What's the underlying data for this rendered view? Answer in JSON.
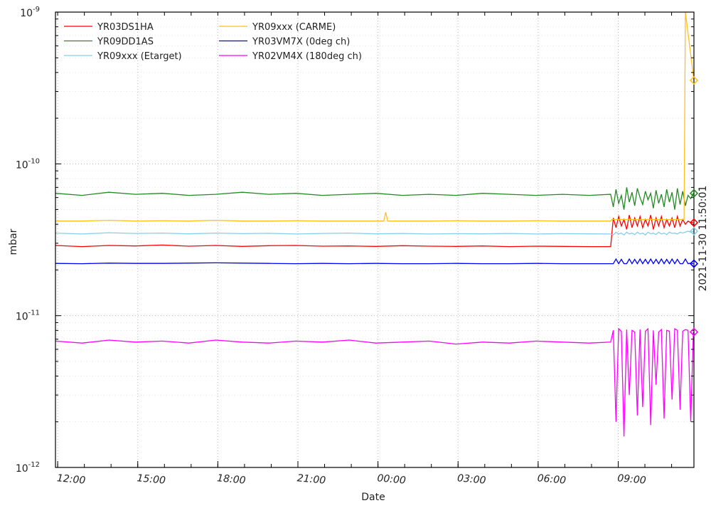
{
  "chart_data": {
    "type": "line",
    "title": "",
    "xlabel": "Date",
    "ylabel": "mbar",
    "yscale": "log",
    "ylim": [
      1e-12,
      1e-09
    ],
    "x_unit": "hours since 2021-11-29 11:55",
    "xlim": [
      0,
      23.92
    ],
    "x_ticks": [
      {
        "t": 0.083,
        "label": "12:00"
      },
      {
        "t": 3.083,
        "label": "15:00"
      },
      {
        "t": 6.083,
        "label": "18:00"
      },
      {
        "t": 9.083,
        "label": "21:00"
      },
      {
        "t": 12.083,
        "label": "00:00"
      },
      {
        "t": 15.083,
        "label": "03:00"
      },
      {
        "t": 18.083,
        "label": "06:00"
      },
      {
        "t": 21.083,
        "label": "09:00"
      }
    ],
    "y_ticks": [
      {
        "value": 1e-09,
        "base": "10",
        "exp": "-9"
      },
      {
        "value": 1e-10,
        "base": "10",
        "exp": "-10"
      },
      {
        "value": 1e-11,
        "base": "10",
        "exp": "-11"
      },
      {
        "value": 1e-12,
        "base": "10",
        "exp": "-12"
      }
    ],
    "grid": true,
    "legend_position": "top-left",
    "cursor_label": "2021-11-30 11:50:01",
    "cursor_color": "#8a63b8",
    "t_shared": [
      0,
      1,
      2,
      3,
      4,
      5,
      6,
      7,
      8,
      9,
      10,
      11,
      12,
      13,
      14,
      15,
      16,
      17,
      18,
      19,
      20,
      20.8,
      20.9,
      21.0,
      21.1,
      21.2,
      21.3,
      21.4,
      21.5,
      21.6,
      21.7,
      21.8,
      21.9,
      22.0,
      22.1,
      22.2,
      22.3,
      22.4,
      22.5,
      22.6,
      22.7,
      22.8,
      22.9,
      23.0,
      23.1,
      23.2,
      23.3,
      23.4,
      23.5,
      23.6,
      23.7,
      23.8,
      23.9
    ],
    "series": [
      {
        "name": "YR03DS1HA",
        "color": "#ff0000",
        "values": [
          2.9e-11,
          2.85e-11,
          2.9e-11,
          2.88e-11,
          2.92e-11,
          2.87e-11,
          2.9e-11,
          2.86e-11,
          2.89e-11,
          2.9e-11,
          2.87e-11,
          2.88e-11,
          2.86e-11,
          2.89e-11,
          2.87e-11,
          2.86e-11,
          2.88e-11,
          2.85e-11,
          2.87e-11,
          2.86e-11,
          2.85e-11,
          2.85e-11,
          4.4e-11,
          3.8e-11,
          4.5e-11,
          3.9e-11,
          4.3e-11,
          3.7e-11,
          4.6e-11,
          3.8e-11,
          4.4e-11,
          3.9e-11,
          4.5e-11,
          3.8e-11,
          4.3e-11,
          3.9e-11,
          4.6e-11,
          3.7e-11,
          4.4e-11,
          3.9e-11,
          4.5e-11,
          3.8e-11,
          4.3e-11,
          3.9e-11,
          4.4e-11,
          3.8e-11,
          4.5e-11,
          3.9e-11,
          4.3e-11,
          4e-11,
          4.2e-11,
          4.1e-11,
          4.1e-11
        ]
      },
      {
        "name": "YR09DD1AS",
        "color": "#228b22",
        "values": [
          6.4e-11,
          6.2e-11,
          6.5e-11,
          6.3e-11,
          6.4e-11,
          6.2e-11,
          6.3e-11,
          6.5e-11,
          6.3e-11,
          6.4e-11,
          6.2e-11,
          6.3e-11,
          6.4e-11,
          6.2e-11,
          6.3e-11,
          6.2e-11,
          6.4e-11,
          6.3e-11,
          6.2e-11,
          6.3e-11,
          6.2e-11,
          6.3e-11,
          5.2e-11,
          6.8e-11,
          5.5e-11,
          6.2e-11,
          5e-11,
          7e-11,
          5.6e-11,
          6.5e-11,
          5.3e-11,
          6.9e-11,
          6e-11,
          5.4e-11,
          6.6e-11,
          5.8e-11,
          6.4e-11,
          5.1e-11,
          6.7e-11,
          5.5e-11,
          6.3e-11,
          5.2e-11,
          6.8e-11,
          5.6e-11,
          6.5e-11,
          5e-11,
          6.9e-11,
          5.4e-11,
          6.6e-11,
          5.3e-11,
          6.2e-11,
          5.9e-11,
          6.4e-11
        ]
      },
      {
        "name": "YR09xxx (Etarget)",
        "color": "#87ceeb",
        "values": [
          3.5e-11,
          3.45e-11,
          3.52e-11,
          3.48e-11,
          3.5e-11,
          3.46e-11,
          3.5e-11,
          3.47e-11,
          3.49e-11,
          3.45e-11,
          3.48e-11,
          3.5e-11,
          3.46e-11,
          3.48e-11,
          3.45e-11,
          3.47e-11,
          3.46e-11,
          3.48e-11,
          3.45e-11,
          3.47e-11,
          3.46e-11,
          3.45e-11,
          3.4e-11,
          3.55e-11,
          3.45e-11,
          3.5e-11,
          3.4e-11,
          3.55e-11,
          3.45e-11,
          3.5e-11,
          3.42e-11,
          3.55e-11,
          3.45e-11,
          3.5e-11,
          3.4e-11,
          3.55e-11,
          3.46e-11,
          3.5e-11,
          3.42e-11,
          3.55e-11,
          3.45e-11,
          3.5e-11,
          3.42e-11,
          3.55e-11,
          3.48e-11,
          3.5e-11,
          3.45e-11,
          3.55e-11,
          3.5e-11,
          3.55e-11,
          3.6e-11,
          3.55e-11,
          3.6e-11
        ]
      },
      {
        "name": "YR09xxx (CARME)",
        "color": "#ffc020",
        "t": [
          0,
          1,
          2,
          3,
          4,
          5,
          6,
          7,
          8,
          9,
          10,
          11,
          12,
          12.3,
          12.37,
          12.45,
          13,
          14,
          15,
          16,
          17,
          18,
          19,
          20,
          20.8,
          20.85,
          21.5,
          22,
          22.5,
          23,
          23.55,
          23.6,
          23.92
        ],
        "values": [
          4.2e-11,
          4.2e-11,
          4.25e-11,
          4.2e-11,
          4.22e-11,
          4.2e-11,
          4.25e-11,
          4.2e-11,
          4.2e-11,
          4.22e-11,
          4.2e-11,
          4.2e-11,
          4.2e-11,
          4.2e-11,
          4.8e-11,
          4.2e-11,
          4.2e-11,
          4.2e-11,
          4.22e-11,
          4.2e-11,
          4.2e-11,
          4.22e-11,
          4.2e-11,
          4.2e-11,
          4.2e-11,
          4.3e-11,
          4.3e-11,
          4.3e-11,
          4.3e-11,
          4.3e-11,
          4.3e-11,
          1e-09,
          3.55e-10
        ]
      },
      {
        "name": "YR03VM7X (0deg ch)",
        "color": "#0000ff",
        "values": [
          2.21e-11,
          2.2e-11,
          2.22e-11,
          2.21e-11,
          2.21e-11,
          2.22e-11,
          2.23e-11,
          2.22e-11,
          2.21e-11,
          2.2e-11,
          2.21e-11,
          2.2e-11,
          2.21e-11,
          2.2e-11,
          2.2e-11,
          2.21e-11,
          2.2e-11,
          2.2e-11,
          2.21e-11,
          2.2e-11,
          2.2e-11,
          2.2e-11,
          2.2e-11,
          2.36e-11,
          2.2e-11,
          2.35e-11,
          2.2e-11,
          2.2e-11,
          2.36e-11,
          2.2e-11,
          2.35e-11,
          2.2e-11,
          2.36e-11,
          2.2e-11,
          2.35e-11,
          2.2e-11,
          2.36e-11,
          2.2e-11,
          2.35e-11,
          2.2e-11,
          2.36e-11,
          2.2e-11,
          2.35e-11,
          2.2e-11,
          2.36e-11,
          2.2e-11,
          2.35e-11,
          2.2e-11,
          2.2e-11,
          2.36e-11,
          2.2e-11,
          2.22e-11,
          2.2e-11
        ]
      },
      {
        "name": "YR02VM4X (180deg ch)",
        "color": "#ff00ff",
        "values": [
          6.8e-12,
          6.6e-12,
          6.9e-12,
          6.7e-12,
          6.8e-12,
          6.6e-12,
          6.9e-12,
          6.7e-12,
          6.6e-12,
          6.8e-12,
          6.7e-12,
          6.9e-12,
          6.6e-12,
          6.7e-12,
          6.8e-12,
          6.5e-12,
          6.7e-12,
          6.6e-12,
          6.8e-12,
          6.7e-12,
          6.6e-12,
          6.7e-12,
          8e-12,
          2e-12,
          8.2e-12,
          7.9e-12,
          1.6e-12,
          8.1e-12,
          3e-12,
          8e-12,
          7.8e-12,
          2.2e-12,
          8.1e-12,
          2.5e-12,
          7.9e-12,
          8.2e-12,
          1.9e-12,
          8e-12,
          3.5e-12,
          7.8e-12,
          8.1e-12,
          2.1e-12,
          8e-12,
          7.9e-12,
          2.8e-12,
          8.2e-12,
          8e-12,
          2.4e-12,
          7.9e-12,
          8.1e-12,
          8e-12,
          2e-12,
          7.8e-12
        ]
      }
    ],
    "end_markers": [
      {
        "series": "YR09xxx (CARME)",
        "value": 3.55e-10
      },
      {
        "series": "YR09DD1AS",
        "value": 6.4e-11
      },
      {
        "series": "YR03DS1HA",
        "value": 4.1e-11
      },
      {
        "series": "YR09xxx (Etarget)",
        "value": 3.6e-11
      },
      {
        "series": "YR03VM7X (0deg ch)",
        "value": 2.2e-11
      },
      {
        "series": "YR02VM4X (180deg ch)",
        "value": 7.8e-12
      }
    ]
  }
}
